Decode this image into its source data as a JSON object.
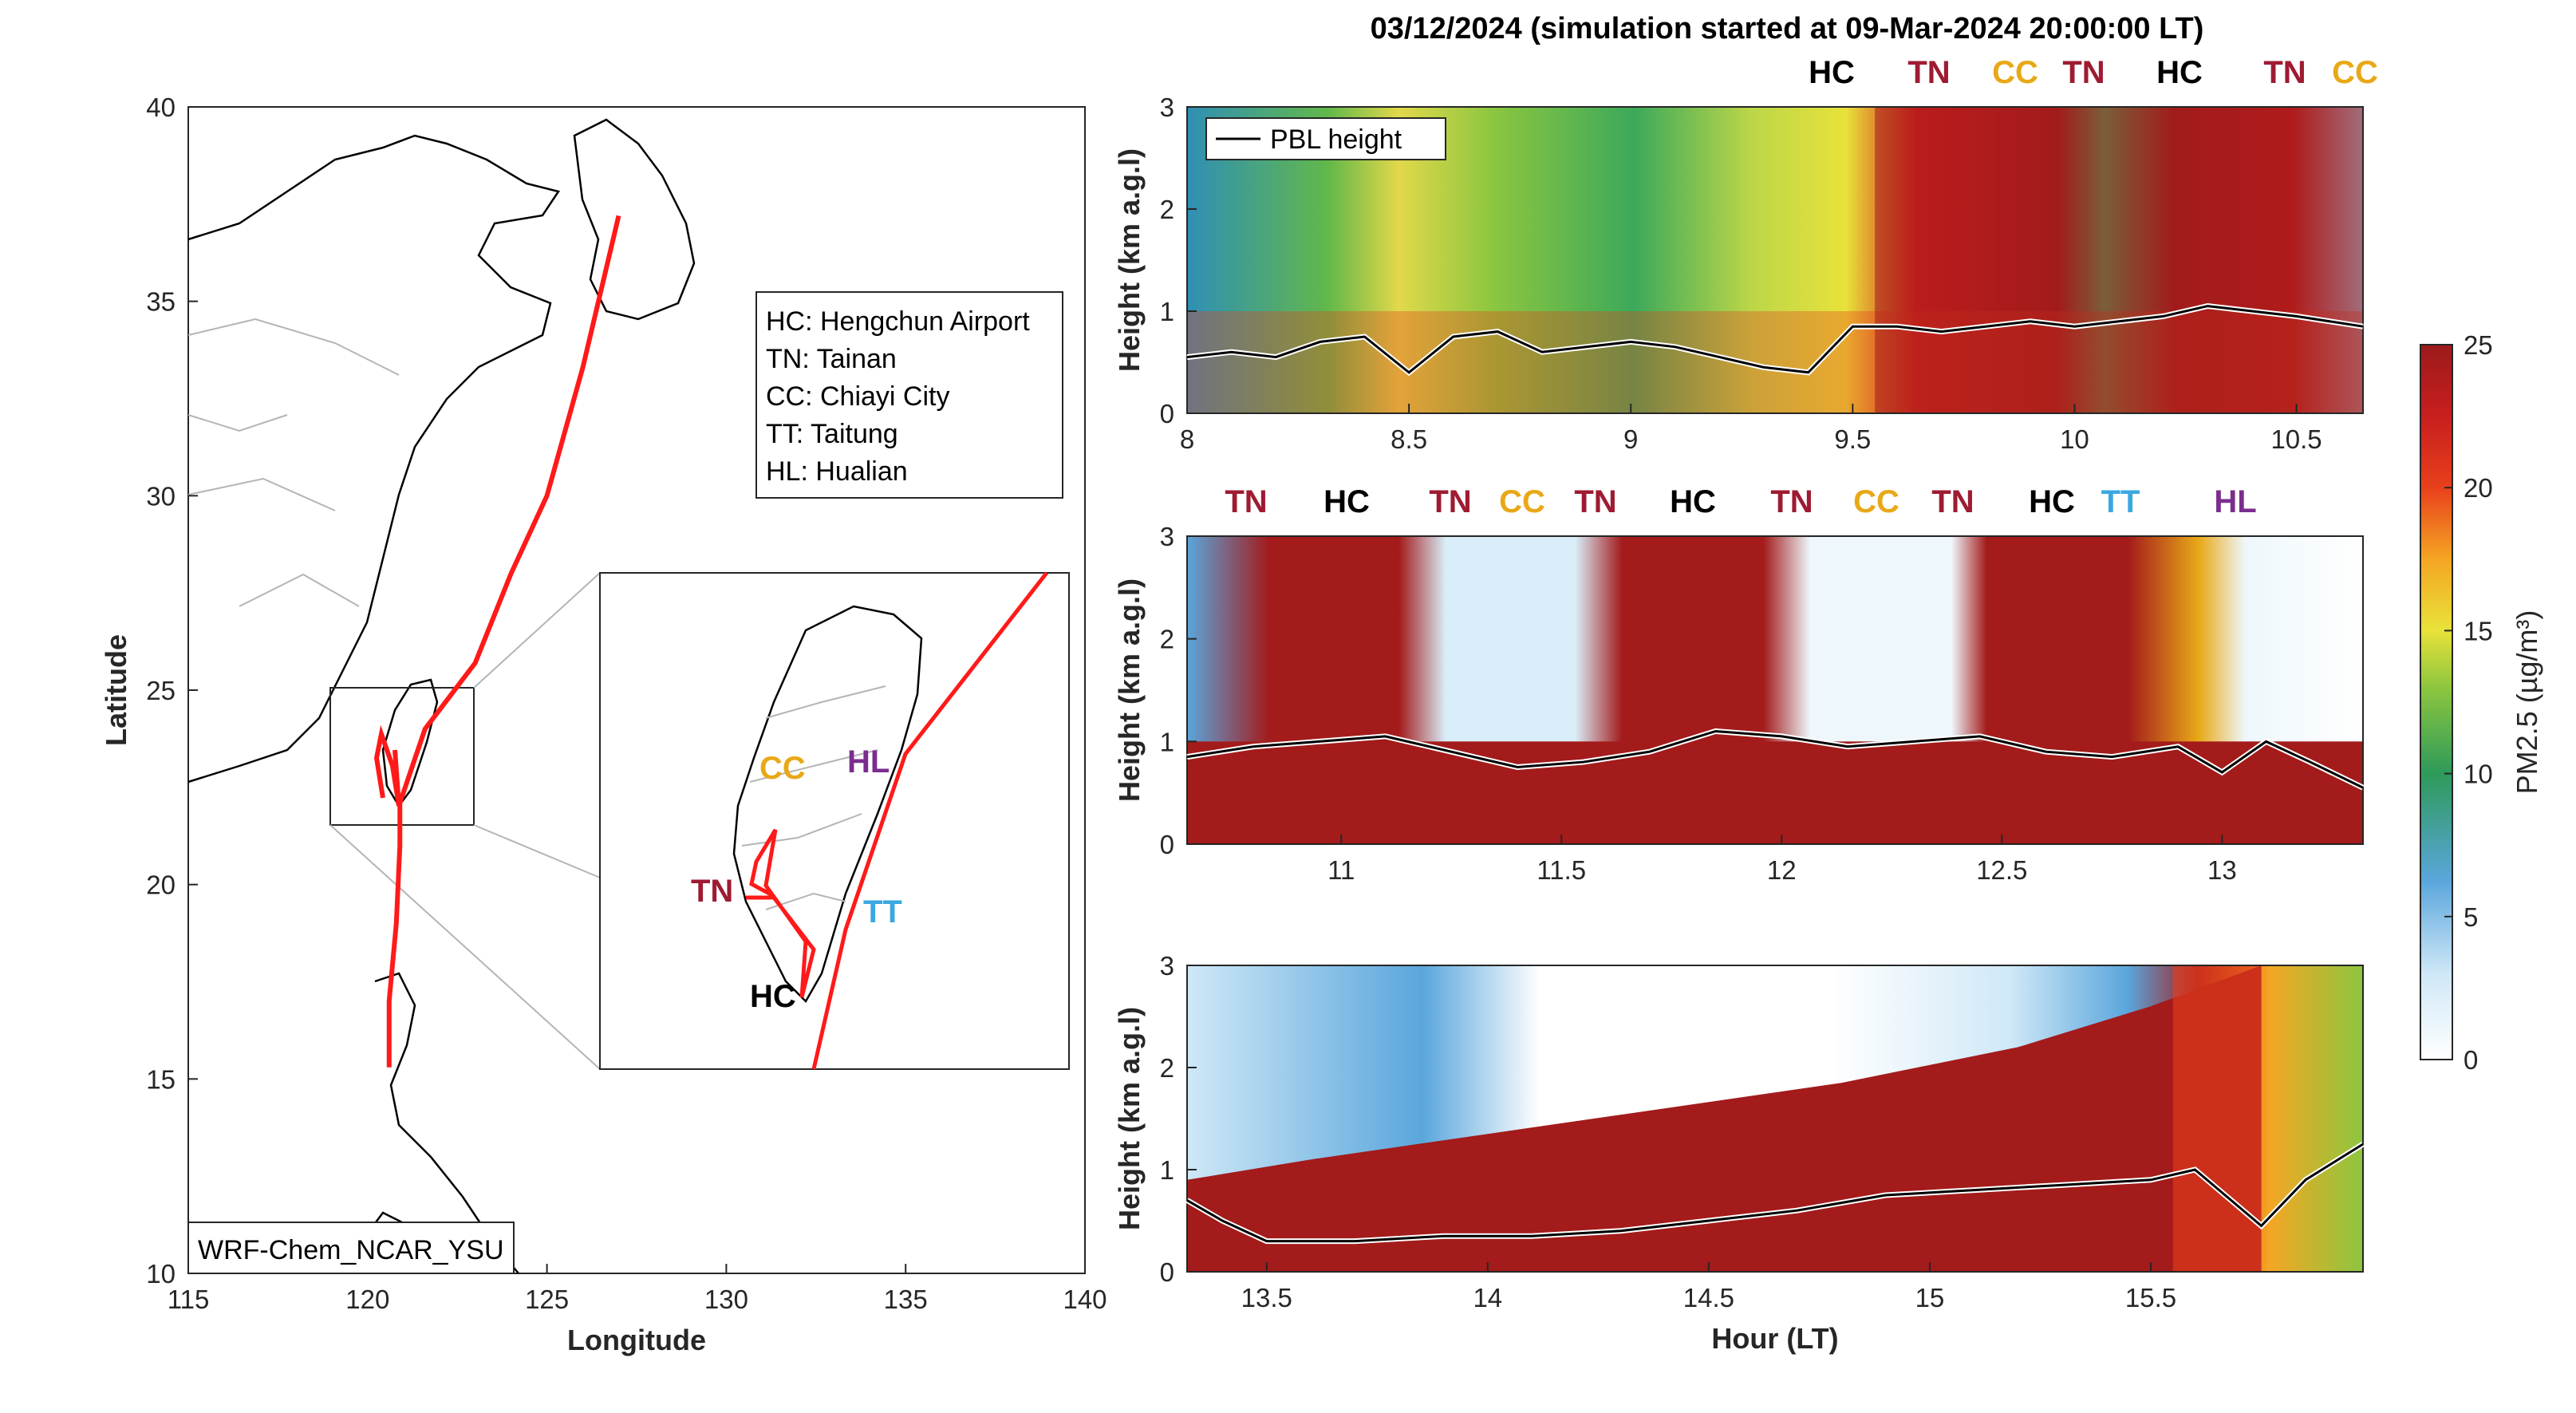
{
  "figure_title": "03/12/2024 (simulation started at 09-Mar-2024 20:00:00 LT)",
  "colors": {
    "site_HC": "#000000",
    "site_TN": "#9e1b32",
    "site_CC": "#e8a817",
    "site_TT": "#3aa8e0",
    "site_HL": "#7b2d8e",
    "track": "#ff1a1a"
  },
  "map": {
    "xlabel": "Longitude",
    "ylabel": "Latitude",
    "xlim": [
      115,
      140
    ],
    "ylim": [
      10,
      40
    ],
    "xticks": [
      "115",
      "120",
      "125",
      "130",
      "135",
      "140"
    ],
    "yticks": [
      "10",
      "15",
      "20",
      "25",
      "30",
      "35",
      "40"
    ],
    "model_label": "WRF-Chem_NCAR_YSU",
    "legend": [
      "HC: Hengchun Airport",
      "TN: Tainan",
      "CC: Chiayi City",
      "TT: Taitung",
      "HL: Hualian"
    ],
    "inset_labels": [
      "CC",
      "HL",
      "TN",
      "TT",
      "HC"
    ],
    "track_lonlat": [
      [
        127.0,
        37.2
      ],
      [
        126.0,
        33.3
      ],
      [
        125.0,
        30.0
      ],
      [
        124.0,
        28.0
      ],
      [
        123.0,
        25.7
      ],
      [
        121.6,
        24.0
      ],
      [
        120.9,
        22.1
      ],
      [
        120.9,
        21.0
      ],
      [
        120.8,
        19.0
      ],
      [
        120.6,
        17.0
      ],
      [
        120.6,
        15.3
      ]
    ]
  },
  "colorbar": {
    "label": "PM2.5 (µg/m³)",
    "ticks": [
      "0",
      "5",
      "10",
      "15",
      "20",
      "25"
    ],
    "range": [
      0,
      25
    ]
  },
  "chart_data": [
    {
      "type": "heatmap",
      "panel": "top",
      "xlabel": "",
      "ylabel": "Height (km a.g.l)",
      "xlim": [
        8,
        10.65
      ],
      "ylim": [
        0,
        3
      ],
      "xticks": [
        "8",
        "8.5",
        "9",
        "9.5",
        "10",
        "10.5"
      ],
      "yticks": [
        "0",
        "1",
        "2",
        "3"
      ],
      "legend": "PBL height",
      "legend_position": "top-left",
      "site_labels": [
        "HC",
        "TN",
        "CC",
        "TN",
        "HC",
        "TN",
        "CC"
      ],
      "pbl_height": {
        "x": [
          8.0,
          8.1,
          8.2,
          8.3,
          8.4,
          8.5,
          8.6,
          8.7,
          8.8,
          8.9,
          9.0,
          9.1,
          9.2,
          9.3,
          9.4,
          9.5,
          9.6,
          9.7,
          9.8,
          9.9,
          10.0,
          10.1,
          10.2,
          10.3,
          10.4,
          10.5,
          10.65
        ],
        "y": [
          0.55,
          0.6,
          0.55,
          0.7,
          0.75,
          0.4,
          0.75,
          0.8,
          0.6,
          0.65,
          0.7,
          0.65,
          0.55,
          0.45,
          0.4,
          0.85,
          0.85,
          0.8,
          0.85,
          0.9,
          0.85,
          0.9,
          0.95,
          1.05,
          1.0,
          0.95,
          0.85
        ]
      }
    },
    {
      "type": "heatmap",
      "panel": "middle",
      "xlabel": "",
      "ylabel": "Height (km a.g.l)",
      "xlim": [
        10.65,
        13.32
      ],
      "ylim": [
        0,
        3
      ],
      "xticks": [
        "11",
        "11.5",
        "12",
        "12.5",
        "13"
      ],
      "yticks": [
        "0",
        "1",
        "2",
        "3"
      ],
      "site_labels": [
        "TN",
        "HC",
        "TN",
        "CC",
        "TN",
        "HC",
        "TN",
        "CC",
        "TN",
        "HC",
        "TT",
        "HL"
      ],
      "pbl_height": {
        "x": [
          10.65,
          10.8,
          10.95,
          11.1,
          11.25,
          11.4,
          11.55,
          11.7,
          11.85,
          12.0,
          12.15,
          12.3,
          12.45,
          12.6,
          12.75,
          12.9,
          13.0,
          13.1,
          13.2,
          13.32
        ],
        "y": [
          0.85,
          0.95,
          1.0,
          1.05,
          0.9,
          0.75,
          0.8,
          0.9,
          1.1,
          1.05,
          0.95,
          1.0,
          1.05,
          0.9,
          0.85,
          0.95,
          0.7,
          1.0,
          0.8,
          0.55
        ]
      }
    },
    {
      "type": "heatmap",
      "panel": "bottom",
      "xlabel": "Hour (LT)",
      "ylabel": "Height (km a.g.l)",
      "xlim": [
        13.32,
        15.98
      ],
      "ylim": [
        0,
        3
      ],
      "xticks": [
        "13.5",
        "14",
        "14.5",
        "15",
        "15.5"
      ],
      "yticks": [
        "0",
        "1",
        "2",
        "3"
      ],
      "pbl_height": {
        "x": [
          13.32,
          13.4,
          13.5,
          13.7,
          13.9,
          14.1,
          14.3,
          14.5,
          14.7,
          14.9,
          15.1,
          15.3,
          15.5,
          15.6,
          15.75,
          15.85,
          15.98
        ],
        "y": [
          0.7,
          0.5,
          0.3,
          0.3,
          0.35,
          0.35,
          0.4,
          0.5,
          0.6,
          0.75,
          0.8,
          0.85,
          0.9,
          1.0,
          0.45,
          0.9,
          1.25
        ]
      }
    }
  ]
}
